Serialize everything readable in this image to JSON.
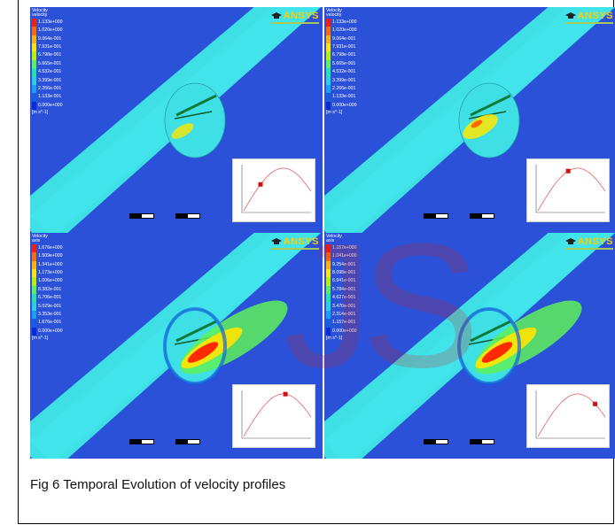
{
  "caption": "Fig 6 Temporal Evolution of velocity profiles",
  "watermark": "JS",
  "brand": "ANSYS",
  "colormap": [
    "#ff1a00",
    "#ff6a00",
    "#ffb000",
    "#ffe600",
    "#b8f000",
    "#5ef05a",
    "#27e0b0",
    "#2ad0e0",
    "#1aa0f0",
    "#1560e0",
    "#0a2ad8"
  ],
  "panels": [
    {
      "legend_title": "Velocity",
      "legend_subtitle": "velocity",
      "legend_values": [
        "1.133e+000",
        "1.020e+000",
        "9.064e-001",
        "7.931e-001",
        "6.798e-001",
        "5.665e-001",
        "4.532e-001",
        "3.399e-001",
        "2.266e-001",
        "1.133e-001",
        "0.000e+000"
      ],
      "unit": "[m s^-1]",
      "marker_t": 0.25
    },
    {
      "legend_title": "Velocity",
      "legend_subtitle": "velocity",
      "legend_values": [
        "1.133e+000",
        "1.020e+000",
        "9.064e-001",
        "7.931e-001",
        "6.798e-001",
        "5.665e-001",
        "4.532e-001",
        "3.399e-001",
        "2.266e-001",
        "1.133e-001",
        "0.000e+000"
      ],
      "unit": "[m s^-1]",
      "marker_t": 0.45
    },
    {
      "legend_title": "Velocity",
      "legend_subtitle": "axis",
      "legend_values": [
        "1.676e+000",
        "1.509e+000",
        "1.341e+000",
        "1.173e+000",
        "1.006e+000",
        "8.382e-001",
        "6.706e-001",
        "5.029e-001",
        "3.353e-001",
        "1.676e-001",
        "0.000e+000"
      ],
      "unit": "[m s^-1]",
      "marker_t": 0.62
    },
    {
      "legend_title": "Velocity",
      "legend_subtitle": "axis",
      "legend_values": [
        "1.157e+000",
        "1.041e+000",
        "9.254e-001",
        "8.098e-001",
        "6.941e-001",
        "5.784e-001",
        "4.627e-001",
        "3.470e-001",
        "2.314e-001",
        "1.157e-001",
        "0.000e+000"
      ],
      "unit": "[m s^-1]",
      "marker_t": 0.85
    }
  ]
}
